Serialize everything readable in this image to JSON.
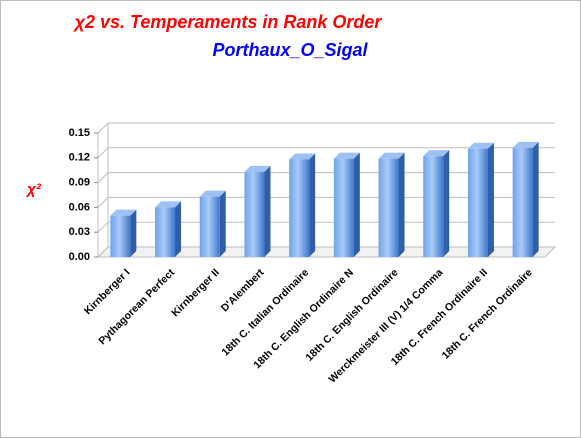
{
  "chart_data": {
    "type": "bar",
    "title": "χ2 vs. Temperaments in Rank Order",
    "subtitle": "Porthaux_O_Sigal",
    "y_label": "χ²",
    "categories": [
      "Kirnberger I",
      "Pythagorean Perfect",
      "Kirnberger II",
      "D'Alembert",
      "18th C. Italian Ordinaire",
      "18th C. English  Ordinaire N",
      "18th C. English  Ordinaire",
      "Werckmeister III (V) 1/4 Comma",
      "18th C. French Ordinaire II",
      "18th C. French Ordinaire"
    ],
    "values": [
      0.05,
      0.06,
      0.073,
      0.103,
      0.118,
      0.119,
      0.119,
      0.122,
      0.131,
      0.132
    ],
    "color": "#4a86d8",
    "ylim": [
      0,
      0.15
    ],
    "yticks": [
      {
        "value": 0,
        "label": "0.00"
      },
      0.03,
      0.06,
      0.09,
      0.12,
      0.15
    ],
    "grid": true
  }
}
